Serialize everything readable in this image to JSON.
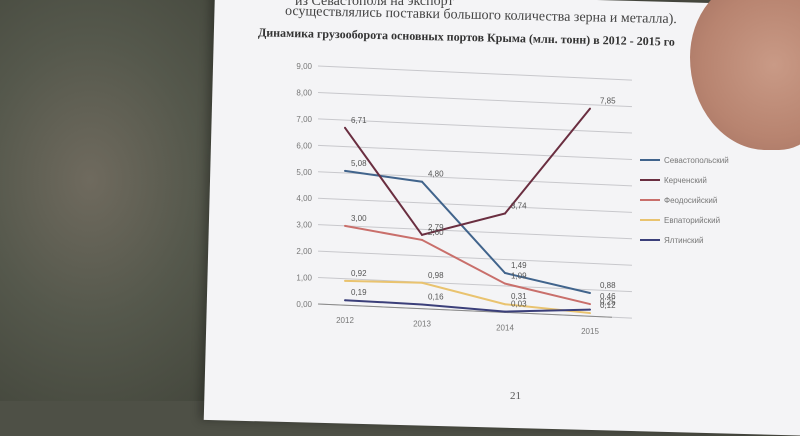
{
  "document": {
    "line1": "из Севастополя на экспорт",
    "line2": "осуществлялись поставки большого количества зерна и металла).",
    "page_number": "21"
  },
  "chart_data": {
    "type": "line",
    "title": "Динамика грузооборота основных портов Крыма (млн. тонн) в 2012 - 2015 го",
    "categories": [
      "2012",
      "2013",
      "2014",
      "2015"
    ],
    "ylim": [
      0,
      9
    ],
    "yticks": [
      "0,00",
      "1,00",
      "2,00",
      "3,00",
      "4,00",
      "5,00",
      "6,00",
      "7,00",
      "8,00",
      "9,00"
    ],
    "grid": true,
    "legend_position": "right",
    "series": [
      {
        "name": "Севастопольский",
        "color": "#41648c",
        "values": [
          5.08,
          4.8,
          1.49,
          0.88
        ],
        "labels": [
          "5,08",
          "4,80",
          "1,49",
          "0,88"
        ]
      },
      {
        "name": "Керченский",
        "color": "#6a2e40",
        "values": [
          6.71,
          2.79,
          3.74,
          7.85
        ],
        "labels": [
          "6,71",
          "2,79",
          "3,74",
          "7,85"
        ]
      },
      {
        "name": "Феодосийский",
        "color": "#c96f6b",
        "values": [
          3.0,
          2.6,
          1.09,
          0.46
        ],
        "labels": [
          "3,00",
          "2,60",
          "1,09",
          "0,46"
        ]
      },
      {
        "name": "Евпаторийский",
        "color": "#e9c36f",
        "values": [
          0.92,
          0.98,
          0.31,
          0.12
        ],
        "labels": [
          "0,92",
          "0,98",
          "0,31",
          "0,12"
        ]
      },
      {
        "name": "Ялтинский",
        "color": "#3b3f7a",
        "values": [
          0.19,
          0.16,
          0.03,
          0.25
        ],
        "labels": [
          "0,19",
          "0,16",
          "0,03",
          "0,25"
        ]
      }
    ]
  }
}
